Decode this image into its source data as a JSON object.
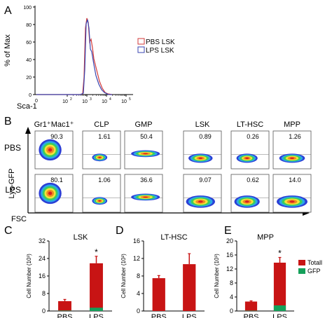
{
  "colors": {
    "pbs_line": "#d23a3a",
    "lps_line": "#3a45b0",
    "total_bar": "#c81414",
    "gfp_bar": "#15a05a",
    "axis": "#000000"
  },
  "panels": {
    "A": "A",
    "B": "B",
    "C": "C",
    "D": "D",
    "E": "E"
  },
  "panel_a": {
    "y_axis_label": "% of Max",
    "x_axis_label": "Sca-1",
    "y_ticks": [
      "0",
      "20",
      "40",
      "60",
      "80",
      "100"
    ],
    "x_tick_base": "10",
    "x_tick_exponents": [
      "2",
      "3",
      "4",
      "5"
    ],
    "x_tick_zero": "0",
    "legend": [
      "PBS LSK",
      "LPS LSK"
    ]
  },
  "panel_b": {
    "row_labels": [
      "PBS",
      "LPS"
    ],
    "col_labels": [
      "Gr1⁺Mac1⁺",
      "CLP",
      "GMP",
      "LSK",
      "LT-HSC",
      "MPP"
    ],
    "values_pbs": [
      "90.3",
      "1.61",
      "50.4",
      "0.89",
      "0.26",
      "1.26"
    ],
    "values_lps": [
      "80.1",
      "1.06",
      "36.6",
      "9.07",
      "0.62",
      "14.0"
    ],
    "y_axis_label": "Lys-GFP",
    "x_axis_label": "FSC"
  },
  "chart_data": [
    {
      "type": "bar",
      "title": "LSK",
      "ylabel": "Cell Number (10³)",
      "categories": [
        "PBS",
        "LPS"
      ],
      "ylim": [
        0,
        32
      ],
      "yticks": [
        "0",
        "8",
        "16",
        "24",
        "32"
      ],
      "series": [
        {
          "name": "Total",
          "values": [
            4.5,
            21.8
          ],
          "error": [
            0.8,
            3.2
          ]
        },
        {
          "name": "GFP",
          "values": [
            0.2,
            1.5
          ]
        }
      ],
      "annotations": [
        "*"
      ]
    },
    {
      "type": "bar",
      "title": "LT-HSC",
      "ylabel": "Cell Number (10²)",
      "categories": [
        "PBS",
        "LPS"
      ],
      "ylim": [
        0,
        16
      ],
      "yticks": [
        "0",
        "4",
        "8",
        "12",
        "16"
      ],
      "series": [
        {
          "name": "Total",
          "values": [
            7.5,
            10.7
          ],
          "error": [
            0.6,
            2.4
          ]
        }
      ]
    },
    {
      "type": "bar",
      "title": "MPP",
      "ylabel": "Cell Number (10³)",
      "categories": [
        "PBS",
        "LPS"
      ],
      "ylim": [
        0,
        20
      ],
      "yticks": [
        "0",
        "4",
        "8",
        "12",
        "16",
        "20"
      ],
      "series": [
        {
          "name": "Total",
          "values": [
            2.7,
            13.8
          ],
          "error": [
            0.2,
            1.5
          ]
        },
        {
          "name": "GFP",
          "values": [
            0.1,
            1.6
          ]
        }
      ],
      "annotations": [
        "*"
      ],
      "legend": [
        "Totall",
        "GFP"
      ]
    }
  ]
}
